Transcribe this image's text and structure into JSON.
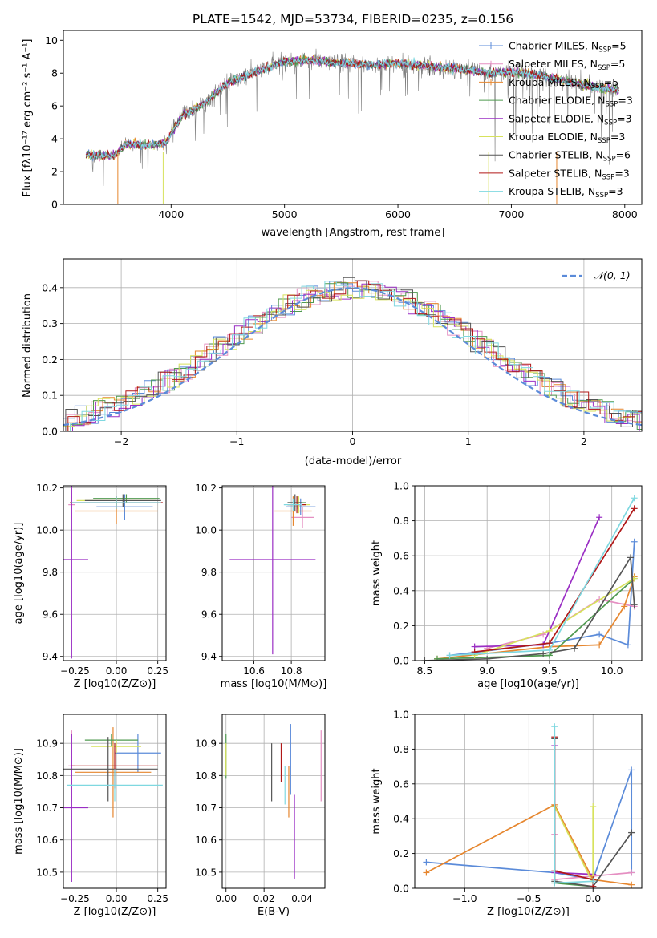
{
  "figure_title": "PLATE=1542, MJD=53734, FIBERID=0235, z=0.156",
  "colors": {
    "blue": "#5b8bd9",
    "orange": "#e6862e",
    "pink": "#e58fc2",
    "green": "#4f9a4f",
    "purple": "#9a2ec4",
    "yellow": "#d7e25c",
    "gray": "#555555",
    "red": "#b01818",
    "cyan": "#7fd8e0"
  },
  "models": [
    {
      "name": "Chabrier MILES, N_SSP=5",
      "label_main": "Chabrier MILES, N",
      "nssp": "=5",
      "color": "#5b8bd9"
    },
    {
      "name": "Salpeter MILES, N_SSP=5",
      "label_main": "Salpeter MILES, N",
      "nssp": "=5",
      "color": "#e58fc2"
    },
    {
      "name": "Kroupa MILES, N_SSP=5",
      "label_main": "Kroupa MILES, N",
      "nssp": "=5",
      "color": "#e6862e"
    },
    {
      "name": "Chabrier ELODIE, N_SSP=3",
      "label_main": "Chabrier ELODIE, N",
      "nssp": "=3",
      "color": "#4f9a4f"
    },
    {
      "name": "Salpeter ELODIE, N_SSP=3",
      "label_main": "Salpeter ELODIE, N",
      "nssp": "=3",
      "color": "#9a2ec4"
    },
    {
      "name": "Kroupa ELODIE, N_SSP=3",
      "label_main": "Kroupa ELODIE, N",
      "nssp": "=3",
      "color": "#d7e25c"
    },
    {
      "name": "Chabrier STELIB, N_SSP=6",
      "label_main": "Chabrier STELIB, N",
      "nssp": "=6",
      "color": "#555555"
    },
    {
      "name": "Salpeter STELIB, N_SSP=3",
      "label_main": "Salpeter STELIB, N",
      "nssp": "=3",
      "color": "#b01818"
    },
    {
      "name": "Kroupa STELIB, N_SSP=3",
      "label_main": "Kroupa STELIB, N",
      "nssp": "=3",
      "color": "#7fd8e0"
    }
  ],
  "chart_data": [
    {
      "id": "spectrum",
      "type": "line",
      "xlabel": "wavelength [Angstrom, rest frame]",
      "ylabel_main": "Flux [f",
      "ylabel_sub": "λ",
      "ylabel_rest": "10",
      "ylabel_exp": "−17",
      "ylabel_units": " erg cm",
      "ylabel_units2": "−2",
      "ylabel_units3": " s",
      "ylabel_units4": "−1",
      "ylabel_units5": " A",
      "ylabel_units6": "−1",
      "ylabel_end": "]",
      "xlim": [
        3050,
        8150
      ],
      "ylim": [
        0,
        10.6
      ],
      "xticks": [
        4000,
        5000,
        6000,
        7000,
        8000
      ],
      "yticks": [
        0,
        2,
        4,
        6,
        8,
        10
      ],
      "envelope": [
        [
          3250,
          3.0
        ],
        [
          3500,
          3.0
        ],
        [
          3600,
          3.7
        ],
        [
          3800,
          3.6
        ],
        [
          3950,
          3.7
        ],
        [
          4000,
          4.3
        ],
        [
          4100,
          5.4
        ],
        [
          4300,
          6.2
        ],
        [
          4500,
          7.4
        ],
        [
          4800,
          8.2
        ],
        [
          5000,
          8.7
        ],
        [
          5200,
          8.8
        ],
        [
          5500,
          8.6
        ],
        [
          5800,
          8.5
        ],
        [
          6000,
          8.6
        ],
        [
          6300,
          8.4
        ],
        [
          6600,
          8.2
        ],
        [
          6800,
          8.0
        ],
        [
          7000,
          8.1
        ],
        [
          7300,
          7.8
        ],
        [
          7600,
          7.3
        ],
        [
          7900,
          7.0
        ]
      ],
      "legend_position": "upper right"
    },
    {
      "id": "residuals",
      "type": "histogram",
      "xlabel": "(data-model)/error",
      "ylabel": "Normed distribution",
      "xlim": [
        -2.5,
        2.5
      ],
      "ylim": [
        0,
        0.48
      ],
      "xticks": [
        -2,
        -1,
        0,
        1,
        2
      ],
      "xtick_labels": [
        "−2",
        "−1",
        "0",
        "1",
        "2"
      ],
      "yticks": [
        0.0,
        0.1,
        0.2,
        0.3,
        0.4
      ],
      "reference_curve": "N(0,1)",
      "legend_label": "𝒩(0, 1)",
      "grid": true
    },
    {
      "id": "age_vs_Z",
      "type": "errorbar",
      "xlabel": "Z [log10(Z/Z⊙)]",
      "ylabel": "age [log10(age/yr)]",
      "xlim": [
        -0.32,
        0.3
      ],
      "ylim": [
        9.38,
        10.21
      ],
      "xticks": [
        -0.25,
        0.0,
        0.25
      ],
      "xtick_labels": [
        "−0.25",
        "0.00",
        "0.25"
      ],
      "yticks": [
        9.4,
        9.6,
        9.8,
        10.0,
        10.2
      ],
      "points": [
        {
          "x": 0.05,
          "xerr": 0.17,
          "y": 10.11,
          "yerr": 0.06,
          "model": 0
        },
        {
          "x": -0.27,
          "xerr": 0.02,
          "y": 10.12,
          "yerr": 0.07,
          "model": 1
        },
        {
          "x": 0.0,
          "xerr": 0.25,
          "y": 10.09,
          "yerr": 0.06,
          "model": 2
        },
        {
          "x": 0.06,
          "xerr": 0.2,
          "y": 10.15,
          "yerr": 0.02,
          "model": 3
        },
        {
          "x": -0.27,
          "xerr": 0.1,
          "y": 9.86,
          "yerr": 0.47,
          "model": 4
        },
        {
          "x": 0.0,
          "xerr": 0.24,
          "y": 10.14,
          "yerr": 0.02,
          "model": 5
        },
        {
          "x": 0.04,
          "xerr": 0.23,
          "y": 10.14,
          "yerr": 0.03,
          "model": 6
        },
        {
          "x": 0.0,
          "xerr": 0.28,
          "y": 10.13,
          "yerr": 0.03,
          "model": 7
        },
        {
          "x": 0.0,
          "xerr": 0.27,
          "y": 10.13,
          "yerr": 0.03,
          "model": 8
        }
      ]
    },
    {
      "id": "age_vs_mass",
      "type": "errorbar",
      "xlabel": "mass [log10(M/M⊙)]",
      "ylabel": "",
      "xlim": [
        10.43,
        10.98
      ],
      "ylim": [
        9.38,
        10.21
      ],
      "xticks": [
        10.6,
        10.8
      ],
      "xtick_labels": [
        "10.6",
        "10.8"
      ],
      "yticks": [
        9.4,
        9.6,
        9.8,
        10.0,
        10.2
      ],
      "points": [
        {
          "x": 10.85,
          "xerr": 0.08,
          "y": 10.11,
          "yerr": 0.04,
          "model": 0
        },
        {
          "x": 10.86,
          "xerr": 0.06,
          "y": 10.06,
          "yerr": 0.05,
          "model": 1
        },
        {
          "x": 10.81,
          "xerr": 0.1,
          "y": 10.09,
          "yerr": 0.07,
          "model": 2
        },
        {
          "x": 10.83,
          "xerr": 0.05,
          "y": 10.13,
          "yerr": 0.03,
          "model": 3
        },
        {
          "x": 10.7,
          "xerr": 0.23,
          "y": 9.86,
          "yerr": 0.45,
          "model": 4
        },
        {
          "x": 10.84,
          "xerr": 0.06,
          "y": 10.12,
          "yerr": 0.04,
          "model": 5
        },
        {
          "x": 10.82,
          "xerr": 0.04,
          "y": 10.13,
          "yerr": 0.04,
          "model": 6
        },
        {
          "x": 10.83,
          "xerr": 0.05,
          "y": 10.12,
          "yerr": 0.04,
          "model": 7
        },
        {
          "x": 10.81,
          "xerr": 0.05,
          "y": 10.12,
          "yerr": 0.03,
          "model": 8
        }
      ]
    },
    {
      "id": "mass_weight_vs_age",
      "type": "line",
      "xlabel": "age [log10(age/yr)]",
      "ylabel": "mass weight",
      "xlim": [
        8.42,
        10.24
      ],
      "ylim": [
        0,
        1.0
      ],
      "xticks": [
        8.5,
        9.0,
        9.5,
        10.0
      ],
      "xtick_labels": [
        "8.5",
        "9.0",
        "9.5",
        "10.0"
      ],
      "yticks": [
        0.0,
        0.2,
        0.4,
        0.6,
        0.8,
        1.0
      ],
      "series": [
        {
          "model": 0,
          "x": [
            8.7,
            9.5,
            9.9,
            10.13,
            10.18
          ],
          "y": [
            0.03,
            0.1,
            0.15,
            0.09,
            0.68
          ]
        },
        {
          "model": 1,
          "x": [
            9.0,
            9.45,
            9.9,
            10.18
          ],
          "y": [
            0.07,
            0.15,
            0.35,
            0.31
          ]
        },
        {
          "model": 2,
          "x": [
            8.6,
            9.5,
            9.9,
            10.1,
            10.18
          ],
          "y": [
            0.01,
            0.08,
            0.09,
            0.31,
            0.48
          ]
        },
        {
          "model": 3,
          "x": [
            8.6,
            9.5,
            10.18
          ],
          "y": [
            0.01,
            0.03,
            0.47
          ]
        },
        {
          "model": 4,
          "x": [
            8.9,
            9.45,
            9.9
          ],
          "y": [
            0.08,
            0.09,
            0.82
          ]
        },
        {
          "model": 5,
          "x": [
            8.9,
            9.5,
            10.18
          ],
          "y": [
            0.03,
            0.17,
            0.47
          ]
        },
        {
          "model": 6,
          "x": [
            8.5,
            9.0,
            9.45,
            9.7,
            10.15,
            10.18
          ],
          "y": [
            0.0,
            0.01,
            0.04,
            0.07,
            0.59,
            0.32
          ]
        },
        {
          "model": 7,
          "x": [
            8.9,
            9.5,
            10.18
          ],
          "y": [
            0.05,
            0.1,
            0.87
          ]
        },
        {
          "model": 8,
          "x": [
            8.7,
            9.5,
            10.18
          ],
          "y": [
            0.03,
            0.06,
            0.93
          ]
        }
      ]
    },
    {
      "id": "mass_vs_Z",
      "type": "errorbar",
      "xlabel": "Z [log10(Z/Z⊙)]",
      "ylabel": "mass [log10(M/M⊙)]",
      "xlim": [
        -0.32,
        0.3
      ],
      "ylim": [
        10.45,
        10.99
      ],
      "xticks": [
        -0.25,
        0.0,
        0.25
      ],
      "xtick_labels": [
        "−0.25",
        "0.00",
        "0.25"
      ],
      "yticks": [
        10.5,
        10.6,
        10.7,
        10.8,
        10.9
      ],
      "points": [
        {
          "x": 0.13,
          "xerr": 0.14,
          "y": 10.87,
          "yerr": 0.06,
          "model": 0
        },
        {
          "x": -0.27,
          "xerr": 0.02,
          "y": 10.83,
          "yerr": 0.11,
          "model": 1
        },
        {
          "x": -0.02,
          "xerr": 0.23,
          "y": 10.81,
          "yerr": 0.14,
          "model": 2
        },
        {
          "x": -0.03,
          "xerr": 0.16,
          "y": 10.91,
          "yerr": 0.02,
          "model": 3
        },
        {
          "x": -0.27,
          "xerr": 0.1,
          "y": 10.7,
          "yerr": 0.23,
          "model": 4
        },
        {
          "x": 0.0,
          "xerr": 0.15,
          "y": 10.89,
          "yerr": 0.02,
          "model": 5
        },
        {
          "x": -0.05,
          "xerr": 0.3,
          "y": 10.82,
          "yerr": 0.1,
          "model": 6
        },
        {
          "x": -0.01,
          "xerr": 0.26,
          "y": 10.83,
          "yerr": 0.07,
          "model": 7
        },
        {
          "x": -0.01,
          "xerr": 0.29,
          "y": 10.77,
          "yerr": 0.05,
          "model": 8
        }
      ]
    },
    {
      "id": "mass_vs_EBV",
      "type": "errorbar",
      "xlabel": "E(B-V)",
      "ylabel": "",
      "xlim": [
        -0.002,
        0.052
      ],
      "ylim": [
        10.45,
        10.99
      ],
      "xticks": [
        0.0,
        0.02,
        0.04
      ],
      "xtick_labels": [
        "0.00",
        "0.02",
        "0.04"
      ],
      "yticks": [
        10.5,
        10.6,
        10.7,
        10.8,
        10.9
      ],
      "points": [
        {
          "x": 0.034,
          "xerr": 0,
          "y": 10.85,
          "yerr": 0.11,
          "model": 0
        },
        {
          "x": 0.05,
          "xerr": 0,
          "y": 10.83,
          "yerr": 0.11,
          "model": 1
        },
        {
          "x": 0.033,
          "xerr": 0,
          "y": 10.75,
          "yerr": 0.08,
          "model": 2
        },
        {
          "x": 0.0,
          "xerr": 0,
          "y": 10.86,
          "yerr": 0.07,
          "model": 3
        },
        {
          "x": 0.036,
          "xerr": 0,
          "y": 10.61,
          "yerr": 0.13,
          "model": 4
        },
        {
          "x": 0.0,
          "xerr": 0,
          "y": 10.85,
          "yerr": 0.05,
          "model": 5
        },
        {
          "x": 0.024,
          "xerr": 0,
          "y": 10.81,
          "yerr": 0.09,
          "model": 6
        },
        {
          "x": 0.029,
          "xerr": 0,
          "y": 10.84,
          "yerr": 0.06,
          "model": 7
        },
        {
          "x": 0.031,
          "xerr": 0,
          "y": 10.77,
          "yerr": 0.06,
          "model": 8
        }
      ]
    },
    {
      "id": "mass_weight_vs_Z",
      "type": "line",
      "xlabel": "Z [log10(Z/Z⊙)]",
      "ylabel": "mass weight",
      "xlim": [
        -1.39,
        0.38
      ],
      "ylim": [
        0,
        1.0
      ],
      "xticks": [
        -1.0,
        -0.5,
        0.0
      ],
      "xtick_labels": [
        "−1.0",
        "−0.5",
        "0.0"
      ],
      "yticks": [
        0.0,
        0.2,
        0.4,
        0.6,
        0.8,
        1.0
      ],
      "series": [
        {
          "model": 0,
          "x": [
            -1.3,
            -0.3,
            0.0,
            0.3,
            0.3
          ],
          "y": [
            0.15,
            0.09,
            0.05,
            0.68,
            0.09
          ]
        },
        {
          "model": 1,
          "x": [
            -0.3,
            -0.3,
            0.0,
            0.3
          ],
          "y": [
            0.31,
            0.05,
            0.07,
            0.09
          ]
        },
        {
          "model": 2,
          "x": [
            -1.3,
            -0.3,
            0.0,
            0.3
          ],
          "y": [
            0.09,
            0.48,
            0.05,
            0.02
          ]
        },
        {
          "model": 3,
          "x": [
            -0.3,
            -0.3,
            0.0
          ],
          "y": [
            0.47,
            0.03,
            0.01
          ]
        },
        {
          "model": 4,
          "x": [
            -0.3,
            -0.3,
            0.0
          ],
          "y": [
            0.82,
            0.09,
            0.08
          ]
        },
        {
          "model": 5,
          "x": [
            -0.3,
            0.0,
            0.0
          ],
          "y": [
            0.47,
            0.03,
            0.47
          ]
        },
        {
          "model": 6,
          "x": [
            -0.3,
            -0.3,
            0.0,
            0.3,
            0.3
          ],
          "y": [
            0.86,
            0.04,
            0.01,
            0.32,
            0.32
          ]
        },
        {
          "model": 7,
          "x": [
            -0.3,
            -0.3,
            0.0,
            0.0
          ],
          "y": [
            0.87,
            0.1,
            0.05,
            0.01
          ]
        },
        {
          "model": 8,
          "x": [
            -0.3,
            -0.3,
            0.0
          ],
          "y": [
            0.93,
            0.03,
            0.04
          ]
        }
      ]
    }
  ]
}
